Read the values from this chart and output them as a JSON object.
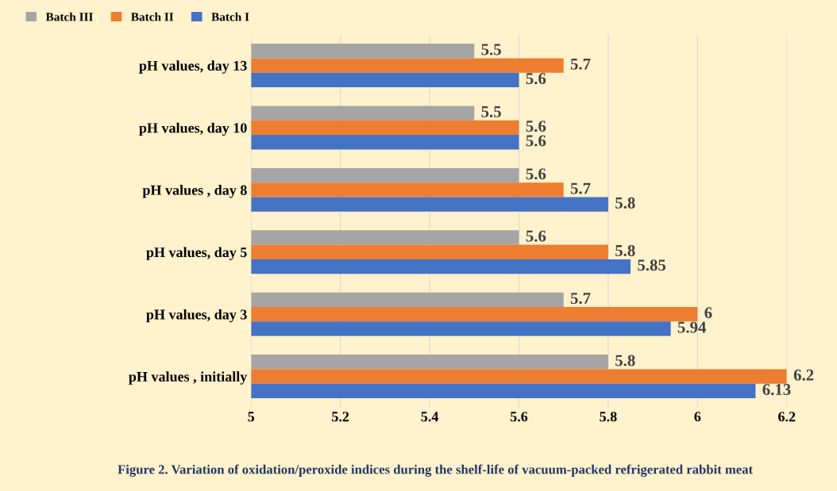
{
  "chart_data": {
    "type": "bar",
    "orientation": "horizontal",
    "categories": [
      "pH values, day 13",
      "pH values, day 10",
      "pH values , day 8",
      "pH values, day 5",
      "pH values, day 3",
      "pH values , initially"
    ],
    "series": [
      {
        "name": "Batch III",
        "color": "#a5a5a5",
        "values": [
          5.5,
          5.5,
          5.6,
          5.6,
          5.7,
          5.8
        ]
      },
      {
        "name": "Batch II",
        "color": "#ed7d31",
        "values": [
          5.7,
          5.6,
          5.7,
          5.8,
          6,
          6.2
        ]
      },
      {
        "name": "Batch I",
        "color": "#4472c4",
        "values": [
          5.6,
          5.6,
          5.8,
          5.85,
          5.94,
          6.13
        ]
      }
    ],
    "xlim": [
      5,
      6.2
    ],
    "xticks": [
      5,
      5.2,
      5.4,
      5.6,
      5.8,
      6,
      6.2
    ],
    "grid": "x",
    "legend": "top left",
    "data_labels": true,
    "annotations": [
      "Figure 2. Variation of oxidation/peroxide indices during the shelf-life of vacuum-packed refrigerated rabbit meat"
    ]
  }
}
